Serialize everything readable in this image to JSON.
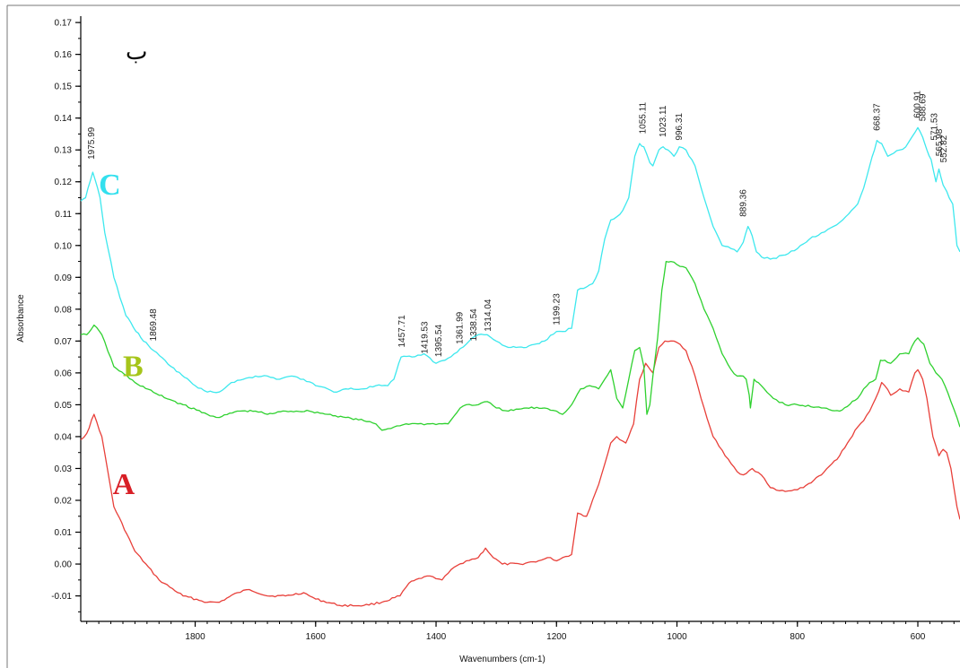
{
  "chart_data": {
    "type": "line",
    "title": "",
    "corner_label": "ب",
    "xlabel": "Wavenumbers (cm-1)",
    "ylabel": "Absorbance",
    "xlim": [
      1990,
      530
    ],
    "ylim": [
      -0.018,
      0.172
    ],
    "x_reversed": true,
    "grid": false,
    "x_ticks": [
      1800,
      1600,
      1400,
      1200,
      1000,
      800,
      600
    ],
    "y_ticks": [
      -0.01,
      0.0,
      0.01,
      0.02,
      0.03,
      0.04,
      0.05,
      0.06,
      0.07,
      0.08,
      0.09,
      0.1,
      0.11,
      0.12,
      0.13,
      0.14,
      0.15,
      0.16,
      0.17
    ],
    "series": [
      {
        "name": "A",
        "color": "#e8403a",
        "label_color": "#d81f26",
        "label_at": {
          "x": 1937,
          "y": 0.022
        },
        "x": [
          1990,
          1980,
          1968,
          1955,
          1935,
          1900,
          1860,
          1820,
          1780,
          1760,
          1730,
          1710,
          1680,
          1650,
          1620,
          1600,
          1560,
          1520,
          1490,
          1460,
          1445,
          1420,
          1405,
          1390,
          1370,
          1350,
          1330,
          1318,
          1305,
          1290,
          1260,
          1230,
          1210,
          1200,
          1190,
          1175,
          1165,
          1150,
          1130,
          1110,
          1100,
          1085,
          1072,
          1062,
          1052,
          1040,
          1030,
          1020,
          1005,
          995,
          985,
          970,
          960,
          940,
          920,
          900,
          890,
          875,
          860,
          845,
          830,
          810,
          790,
          760,
          730,
          700,
          690,
          680,
          670,
          660,
          655,
          645,
          630,
          615,
          605,
          600,
          592,
          585,
          575,
          565,
          558,
          552,
          545,
          535,
          530
        ],
        "values": [
          0.039,
          0.041,
          0.047,
          0.04,
          0.018,
          0.004,
          -0.005,
          -0.01,
          -0.012,
          -0.012,
          -0.009,
          -0.008,
          -0.01,
          -0.01,
          -0.009,
          -0.011,
          -0.013,
          -0.013,
          -0.012,
          -0.01,
          -0.006,
          -0.004,
          -0.004,
          -0.005,
          -0.001,
          0.001,
          0.002,
          0.005,
          0.002,
          0.0,
          0.0,
          0.001,
          0.002,
          0.001,
          0.002,
          0.003,
          0.016,
          0.015,
          0.025,
          0.038,
          0.04,
          0.038,
          0.044,
          0.058,
          0.063,
          0.06,
          0.068,
          0.07,
          0.07,
          0.069,
          0.067,
          0.059,
          0.052,
          0.04,
          0.034,
          0.029,
          0.028,
          0.03,
          0.028,
          0.024,
          0.023,
          0.023,
          0.024,
          0.028,
          0.034,
          0.043,
          0.045,
          0.048,
          0.052,
          0.057,
          0.056,
          0.053,
          0.055,
          0.054,
          0.06,
          0.061,
          0.058,
          0.052,
          0.04,
          0.034,
          0.036,
          0.035,
          0.03,
          0.018,
          0.014
        ]
      },
      {
        "name": "B",
        "color": "#2fd12f",
        "label_color": "#a6c51a",
        "label_at": {
          "x": 1920,
          "y": 0.059
        },
        "x": [
          1990,
          1980,
          1968,
          1955,
          1935,
          1900,
          1860,
          1820,
          1780,
          1760,
          1730,
          1700,
          1680,
          1650,
          1610,
          1580,
          1550,
          1520,
          1500,
          1490,
          1470,
          1450,
          1430,
          1410,
          1390,
          1380,
          1360,
          1350,
          1330,
          1315,
          1300,
          1280,
          1250,
          1220,
          1200,
          1190,
          1175,
          1160,
          1145,
          1130,
          1120,
          1110,
          1100,
          1090,
          1080,
          1070,
          1062,
          1055,
          1050,
          1045,
          1040,
          1032,
          1025,
          1018,
          1010,
          1000,
          985,
          970,
          955,
          940,
          925,
          910,
          900,
          890,
          885,
          880,
          878,
          872,
          865,
          855,
          840,
          820,
          800,
          760,
          730,
          700,
          690,
          680,
          670,
          662,
          655,
          645,
          630,
          615,
          605,
          600,
          590,
          580,
          570,
          560,
          555,
          545,
          535,
          530
        ],
        "values": [
          0.072,
          0.072,
          0.075,
          0.072,
          0.062,
          0.057,
          0.053,
          0.05,
          0.047,
          0.046,
          0.048,
          0.048,
          0.047,
          0.048,
          0.048,
          0.047,
          0.046,
          0.045,
          0.044,
          0.042,
          0.043,
          0.044,
          0.044,
          0.044,
          0.044,
          0.044,
          0.049,
          0.05,
          0.05,
          0.051,
          0.049,
          0.048,
          0.049,
          0.049,
          0.048,
          0.047,
          0.05,
          0.055,
          0.056,
          0.055,
          0.058,
          0.061,
          0.052,
          0.049,
          0.058,
          0.067,
          0.068,
          0.062,
          0.047,
          0.05,
          0.059,
          0.071,
          0.086,
          0.095,
          0.095,
          0.094,
          0.093,
          0.088,
          0.08,
          0.074,
          0.066,
          0.061,
          0.059,
          0.059,
          0.058,
          0.053,
          0.049,
          0.058,
          0.057,
          0.055,
          0.052,
          0.05,
          0.05,
          0.049,
          0.048,
          0.052,
          0.055,
          0.057,
          0.058,
          0.064,
          0.064,
          0.063,
          0.066,
          0.066,
          0.07,
          0.071,
          0.069,
          0.063,
          0.06,
          0.058,
          0.056,
          0.051,
          0.046,
          0.043
        ]
      },
      {
        "name": "C",
        "color": "#3ee8ee",
        "label_color": "#33e0ee",
        "label_at": {
          "x": 1960,
          "y": 0.116
        },
        "x": [
          1990,
          1982,
          1978,
          1970,
          1962,
          1958,
          1950,
          1935,
          1915,
          1890,
          1869,
          1840,
          1800,
          1780,
          1760,
          1740,
          1720,
          1700,
          1680,
          1660,
          1640,
          1620,
          1600,
          1580,
          1570,
          1550,
          1520,
          1500,
          1480,
          1470,
          1458,
          1440,
          1420,
          1400,
          1385,
          1370,
          1350,
          1340,
          1330,
          1315,
          1300,
          1280,
          1250,
          1220,
          1200,
          1190,
          1175,
          1165,
          1150,
          1140,
          1130,
          1120,
          1110,
          1100,
          1090,
          1080,
          1070,
          1062,
          1055,
          1045,
          1040,
          1030,
          1023,
          1015,
          1005,
          996,
          985,
          970,
          955,
          940,
          925,
          910,
          900,
          890,
          882,
          875,
          868,
          855,
          840,
          820,
          800,
          780,
          760,
          740,
          720,
          700,
          690,
          680,
          672,
          668,
          660,
          650,
          640,
          630,
          620,
          610,
          600,
          592,
          585,
          578,
          570,
          565,
          558,
          552,
          548,
          542,
          535,
          530
        ],
        "values": [
          0.114,
          0.115,
          0.118,
          0.123,
          0.118,
          0.115,
          0.104,
          0.09,
          0.078,
          0.071,
          0.067,
          0.062,
          0.056,
          0.054,
          0.054,
          0.057,
          0.058,
          0.059,
          0.059,
          0.058,
          0.059,
          0.058,
          0.056,
          0.055,
          0.054,
          0.055,
          0.055,
          0.056,
          0.056,
          0.058,
          0.065,
          0.065,
          0.066,
          0.063,
          0.064,
          0.066,
          0.069,
          0.071,
          0.072,
          0.072,
          0.07,
          0.068,
          0.068,
          0.07,
          0.073,
          0.073,
          0.074,
          0.086,
          0.087,
          0.088,
          0.092,
          0.102,
          0.108,
          0.109,
          0.111,
          0.115,
          0.128,
          0.132,
          0.131,
          0.126,
          0.125,
          0.13,
          0.131,
          0.13,
          0.128,
          0.131,
          0.13,
          0.125,
          0.115,
          0.106,
          0.1,
          0.099,
          0.098,
          0.101,
          0.106,
          0.103,
          0.098,
          0.096,
          0.096,
          0.097,
          0.099,
          0.102,
          0.104,
          0.106,
          0.109,
          0.113,
          0.118,
          0.125,
          0.13,
          0.133,
          0.132,
          0.128,
          0.129,
          0.13,
          0.131,
          0.134,
          0.137,
          0.134,
          0.13,
          0.127,
          0.12,
          0.124,
          0.119,
          0.117,
          0.115,
          0.113,
          0.1,
          0.098
        ]
      }
    ],
    "peak_labels": [
      {
        "text": "1975.99",
        "x": 1968,
        "y": 0.127
      },
      {
        "text": "1869.48",
        "x": 1865,
        "y": 0.07
      },
      {
        "text": "1457.71",
        "x": 1452,
        "y": 0.068
      },
      {
        "text": "1419.53",
        "x": 1414,
        "y": 0.066
      },
      {
        "text": "1395.54",
        "x": 1391,
        "y": 0.065
      },
      {
        "text": "1361.99",
        "x": 1356,
        "y": 0.069
      },
      {
        "text": "1338.54",
        "x": 1333,
        "y": 0.07
      },
      {
        "text": "1314.04",
        "x": 1309,
        "y": 0.073
      },
      {
        "text": "1199.23",
        "x": 1195,
        "y": 0.075
      },
      {
        "text": "1055.11",
        "x": 1052,
        "y": 0.135
      },
      {
        "text": "1023.11",
        "x": 1019,
        "y": 0.134
      },
      {
        "text": "996.31",
        "x": 992,
        "y": 0.133
      },
      {
        "text": "889.36",
        "x": 885,
        "y": 0.109
      },
      {
        "text": "668.37",
        "x": 663,
        "y": 0.136
      },
      {
        "text": "600.91",
        "x": 596,
        "y": 0.14
      },
      {
        "text": "588.69",
        "x": 587,
        "y": 0.139
      },
      {
        "text": "571.53",
        "x": 568,
        "y": 0.133
      },
      {
        "text": "565.98",
        "x": 560,
        "y": 0.128
      },
      {
        "text": "552.82",
        "x": 552,
        "y": 0.126
      }
    ]
  }
}
